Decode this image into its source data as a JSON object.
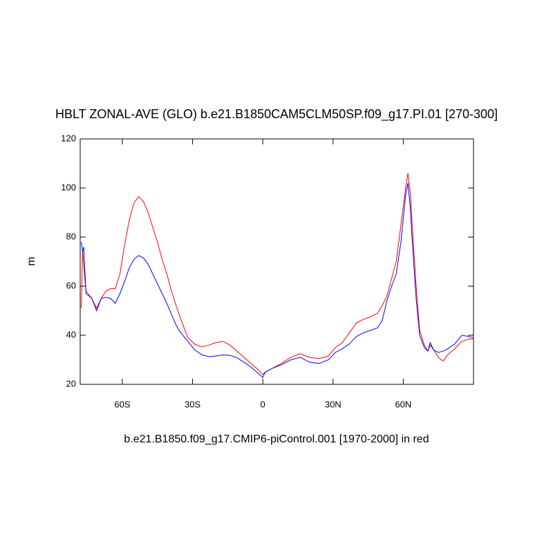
{
  "chart_data": {
    "type": "line",
    "title": "HBLT ZONAL-AVE (GLO) b.e21.B1850CAM5CLM50SP.f09_g17.PI.01 [270-300]",
    "subtitle": "b.e21.B1850.f09_g17.CMIP6-piControl.001 [1970-2000] in red",
    "y_label": "m",
    "x": [
      -77.5,
      -77,
      -76.5,
      -75.5,
      -73,
      -71,
      -69,
      -67,
      -65,
      -63,
      -61,
      -59,
      -57,
      -55,
      -53,
      -51,
      -49,
      -47,
      -45,
      -43,
      -41,
      -39,
      -37,
      -35,
      -32,
      -29,
      -26,
      -23,
      -20,
      -17,
      -14,
      -11,
      -8,
      -5,
      -2,
      0,
      1,
      4,
      8,
      12,
      16,
      20,
      24,
      28,
      31,
      34,
      37,
      40,
      43,
      46,
      49,
      51,
      53,
      55,
      57,
      59,
      61,
      62,
      63,
      64,
      65.5,
      67,
      69,
      70.5,
      71.5,
      73,
      75,
      77,
      79,
      82,
      85,
      88,
      90
    ],
    "series": [
      {
        "color": "#ff0000",
        "values": [
          51,
          75,
          68,
          58,
          55,
          51,
          55,
          58,
          59,
          59,
          65,
          77,
          87,
          94,
          96.5,
          94.5,
          90,
          84,
          78,
          71,
          65,
          58,
          52,
          46.5,
          39,
          36.3,
          35.3,
          36,
          37,
          37.5,
          36,
          33.5,
          31,
          28.5,
          26,
          24,
          25,
          26.5,
          28.5,
          31,
          32.5,
          31,
          30.5,
          31.5,
          35,
          37,
          41,
          45,
          46.5,
          47.5,
          49,
          52,
          56,
          63,
          70,
          85,
          100,
          106,
          98,
          82,
          60,
          42,
          36,
          33.5,
          36,
          34,
          31,
          29.5,
          32,
          34.5,
          37.5,
          38.5,
          38.5
        ]
      },
      {
        "color": "#0000ff",
        "values": [
          78,
          74,
          76,
          57,
          55,
          50,
          55,
          55.5,
          55,
          53,
          57,
          62,
          67.5,
          71,
          72.5,
          71.5,
          69,
          65,
          61,
          57,
          53,
          48.5,
          44,
          41,
          37.5,
          34,
          32,
          31.3,
          31.5,
          32,
          31.8,
          30.8,
          29,
          27,
          24.5,
          22.8,
          25,
          26.5,
          28,
          30,
          31,
          29,
          28.5,
          30,
          33,
          34.5,
          36.5,
          39.5,
          41,
          42,
          43,
          46,
          54,
          60,
          65,
          78,
          97,
          102,
          92,
          76,
          55,
          40,
          35,
          33.5,
          37,
          34,
          33,
          33.5,
          34.5,
          36.5,
          40,
          39.5,
          39
        ]
      }
    ],
    "xlim": [
      -78,
      90
    ],
    "xticks": [
      {
        "value": -60,
        "label": "60S"
      },
      {
        "value": -30,
        "label": "30S"
      },
      0,
      {
        "value": 30,
        "label": "30N"
      },
      {
        "value": 60,
        "label": "60N"
      }
    ],
    "ylim": [
      20,
      120
    ],
    "yticks": [
      20,
      40,
      60,
      80,
      100,
      120
    ]
  }
}
